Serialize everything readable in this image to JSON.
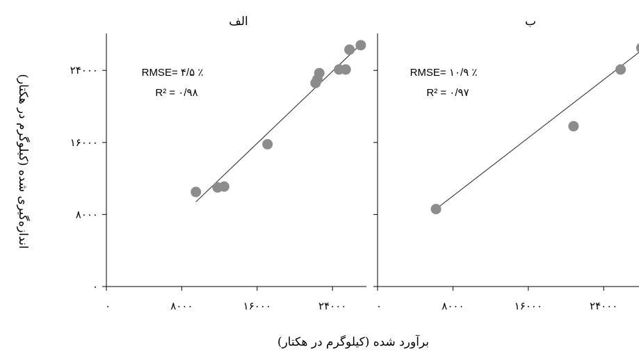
{
  "chart_data": {
    "type": "scatter",
    "xlabel": "برآورد شده (کیلوگرم در هکتار)",
    "ylabel": "اندازه‌گیری شده (کیلوگرم در هکتار)",
    "yticks": [
      "۰",
      "۸۰۰۰",
      "۱۶۰۰۰",
      "۲۴۰۰۰"
    ],
    "panels": [
      {
        "title": "الف",
        "xticks": [
          "۰",
          "۸۰۰۰",
          "۱۶۰۰۰",
          "۲۴۰۰۰"
        ],
        "xlim": [
          0,
          27500
        ],
        "ylim": [
          0,
          28500
        ],
        "points": [
          {
            "x": 9500,
            "y": 10500
          },
          {
            "x": 11800,
            "y": 11000
          },
          {
            "x": 12500,
            "y": 11100
          },
          {
            "x": 17100,
            "y": 15800
          },
          {
            "x": 22200,
            "y": 22600
          },
          {
            "x": 22400,
            "y": 23000
          },
          {
            "x": 22600,
            "y": 23700
          },
          {
            "x": 24700,
            "y": 24100
          },
          {
            "x": 25400,
            "y": 24100
          },
          {
            "x": 25800,
            "y": 26300
          },
          {
            "x": 27000,
            "y": 26800
          }
        ],
        "fit_line": {
          "x": [
            9500,
            27000
          ],
          "y": [
            9400,
            26900
          ]
        },
        "annotation": {
          "rmse": "RMSE= ۴/۵ ٪",
          "r2": "R² = ۰/۹۸"
        }
      },
      {
        "title": "ب",
        "xticks": [
          "۰",
          "۸۰۰۰",
          "۱۶۰۰۰",
          "۲۴۰۰۰"
        ],
        "xlim": [
          0,
          27500
        ],
        "ylim": [
          0,
          28500
        ],
        "points": [
          {
            "x": 6200,
            "y": 8600
          },
          {
            "x": 20800,
            "y": 17800
          },
          {
            "x": 25800,
            "y": 24100
          },
          {
            "x": 28000,
            "y": 26500
          }
        ],
        "fit_line": {
          "x": [
            6200,
            28000
          ],
          "y": [
            8600,
            26200
          ]
        },
        "annotation": {
          "rmse": "RMSE= ۱۰/۹ ٪",
          "r2": "R² = ۰/۹۷"
        }
      }
    ]
  }
}
